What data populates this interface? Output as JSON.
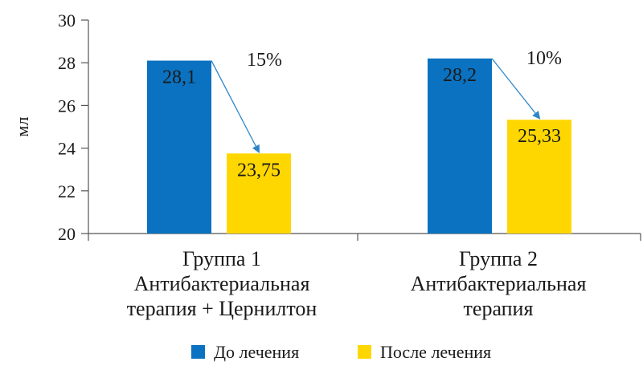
{
  "chart_data": {
    "type": "bar",
    "ylabel": "мл",
    "ylim": [
      20,
      30
    ],
    "yticks": [
      20,
      22,
      24,
      26,
      28,
      30
    ],
    "groups": [
      {
        "label_lines": [
          "Группа 1",
          "Антибактериальная",
          "терапия + Цернилтон"
        ],
        "values": [
          28.1,
          23.75
        ],
        "value_labels": [
          "28,1",
          "23,75"
        ],
        "change": "15%"
      },
      {
        "label_lines": [
          "Группа 2",
          "Антибактериальная",
          "терапия"
        ],
        "values": [
          28.2,
          25.33
        ],
        "value_labels": [
          "28,2",
          "25,33"
        ],
        "change": "10%"
      }
    ],
    "series": [
      {
        "name": "До лечения",
        "color": "#0a72c1"
      },
      {
        "name": "После лечения",
        "color": "#ffd700"
      }
    ],
    "arrow_color": "#2e86c9"
  }
}
